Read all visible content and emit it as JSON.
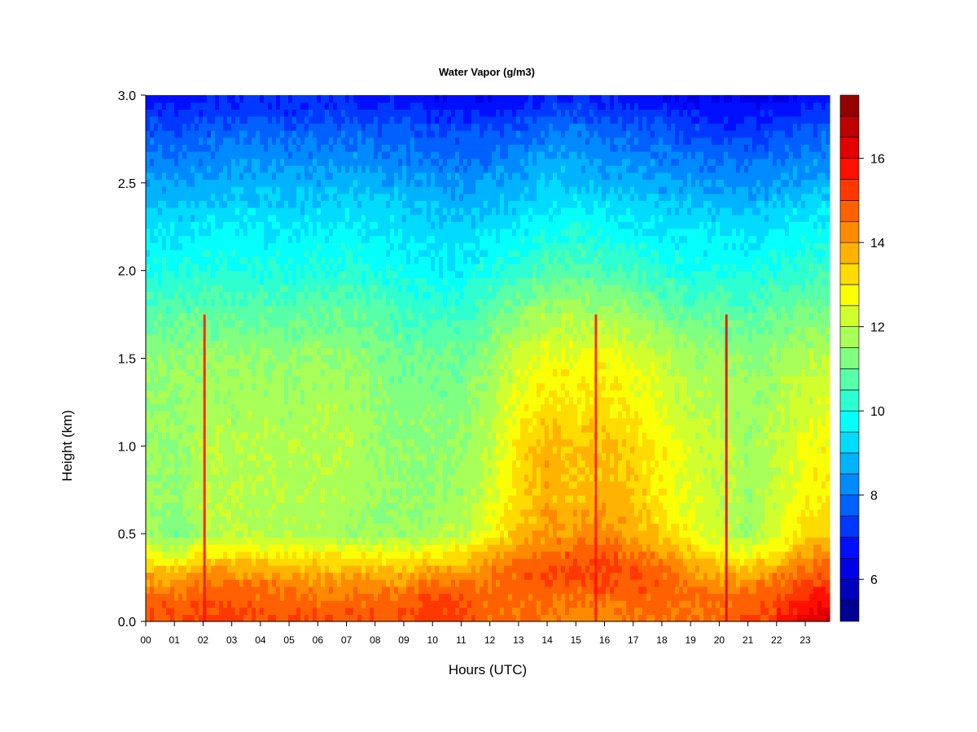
{
  "chart_data": {
    "type": "heatmap",
    "title": "Water Vapor (g/m3)",
    "xlabel": "Hours (UTC)",
    "ylabel": "Height (km)",
    "xlim": [
      0,
      23.85
    ],
    "ylim": [
      0,
      3.0
    ],
    "x_tick_labels": [
      "00",
      "01",
      "02",
      "03",
      "04",
      "05",
      "06",
      "07",
      "08",
      "09",
      "10",
      "11",
      "12",
      "13",
      "14",
      "15",
      "16",
      "17",
      "18",
      "19",
      "20",
      "21",
      "22",
      "23"
    ],
    "y_ticks": [
      0.0,
      0.5,
      1.0,
      1.5,
      2.0,
      2.5,
      3.0
    ],
    "y_tick_labels": [
      "0.0",
      "0.5",
      "1.0",
      "1.5",
      "2.0",
      "2.5",
      "3.0"
    ],
    "colorbar": {
      "range": [
        5,
        17.5
      ],
      "step": 0.5,
      "ticks": [
        6,
        8,
        10,
        12,
        14,
        16
      ],
      "tick_labels": [
        "6",
        "8",
        "10",
        "12",
        "14",
        "16"
      ],
      "colormap": "jet"
    },
    "profile_heights_km": [
      0.0,
      0.1,
      0.2,
      0.3,
      0.4,
      0.5,
      0.7,
      1.0,
      1.2,
      1.5,
      1.8,
      2.0,
      2.3,
      2.5,
      2.8,
      3.0
    ],
    "profiles": [
      {
        "hour": 0,
        "values": [
          15.0,
          14.8,
          14.4,
          13.6,
          12.6,
          11.7,
          11.6,
          11.6,
          11.5,
          11.4,
          10.6,
          10.0,
          9.3,
          8.6,
          7.6,
          6.8
        ]
      },
      {
        "hour": 1,
        "values": [
          15.0,
          14.8,
          14.3,
          13.4,
          12.0,
          11.2,
          11.4,
          11.6,
          11.5,
          11.4,
          10.6,
          10.0,
          9.2,
          8.5,
          7.5,
          6.6
        ]
      },
      {
        "hour": 2,
        "values": [
          15.1,
          14.9,
          14.6,
          13.9,
          12.8,
          11.9,
          11.9,
          11.9,
          11.8,
          11.6,
          10.7,
          10.1,
          9.3,
          8.6,
          7.6,
          6.8
        ]
      },
      {
        "hour": 3,
        "values": [
          15.2,
          15.0,
          14.6,
          13.9,
          12.9,
          12.0,
          11.9,
          11.9,
          11.7,
          11.5,
          10.7,
          10.1,
          9.4,
          8.8,
          7.8,
          6.9
        ]
      },
      {
        "hour": 4,
        "values": [
          15.0,
          14.8,
          14.5,
          13.8,
          12.8,
          11.9,
          11.8,
          11.9,
          11.8,
          11.6,
          10.7,
          10.0,
          9.4,
          8.8,
          7.8,
          6.9
        ]
      },
      {
        "hour": 5,
        "values": [
          15.0,
          14.8,
          14.4,
          13.7,
          12.7,
          11.8,
          11.8,
          11.8,
          11.7,
          11.5,
          10.6,
          10.0,
          9.3,
          8.7,
          7.7,
          6.8
        ]
      },
      {
        "hour": 6,
        "values": [
          15.0,
          14.7,
          14.3,
          13.7,
          12.7,
          11.8,
          11.8,
          11.9,
          11.8,
          11.6,
          10.8,
          10.1,
          9.4,
          8.7,
          7.7,
          6.9
        ]
      },
      {
        "hour": 7,
        "values": [
          15.0,
          14.7,
          14.3,
          13.6,
          12.6,
          11.7,
          11.8,
          11.9,
          11.8,
          11.6,
          10.8,
          10.2,
          9.5,
          8.8,
          7.8,
          6.9
        ]
      },
      {
        "hour": 8,
        "values": [
          15.0,
          14.7,
          14.3,
          13.6,
          12.6,
          11.6,
          11.6,
          11.6,
          11.5,
          11.3,
          10.6,
          10.0,
          9.4,
          8.7,
          7.7,
          6.8
        ]
      },
      {
        "hour": 9,
        "values": [
          15.0,
          14.7,
          14.3,
          13.6,
          12.6,
          11.6,
          11.5,
          11.4,
          11.3,
          11.0,
          10.3,
          9.8,
          9.2,
          8.6,
          7.6,
          6.7
        ]
      },
      {
        "hour": 10,
        "values": [
          15.6,
          15.3,
          14.7,
          13.8,
          12.7,
          11.7,
          11.5,
          11.4,
          11.3,
          11.1,
          10.3,
          9.7,
          9.1,
          8.5,
          7.5,
          6.6
        ]
      },
      {
        "hour": 11,
        "values": [
          15.2,
          15.0,
          14.7,
          14.0,
          13.0,
          11.9,
          11.7,
          11.5,
          11.3,
          11.1,
          10.2,
          9.6,
          9.0,
          8.4,
          7.4,
          6.5
        ]
      },
      {
        "hour": 12,
        "values": [
          14.6,
          14.6,
          14.7,
          14.3,
          13.6,
          12.8,
          12.4,
          12.0,
          11.9,
          11.5,
          10.7,
          10.0,
          9.2,
          8.5,
          7.5,
          6.5
        ]
      },
      {
        "hour": 13,
        "values": [
          14.6,
          14.6,
          14.8,
          14.6,
          14.2,
          13.6,
          13.3,
          13.1,
          12.7,
          12.3,
          11.2,
          10.3,
          9.4,
          8.7,
          7.7,
          6.7
        ]
      },
      {
        "hour": 14,
        "values": [
          14.5,
          14.6,
          14.9,
          15.0,
          14.6,
          14.0,
          13.8,
          13.8,
          13.3,
          12.7,
          11.6,
          10.6,
          9.7,
          9.0,
          8.0,
          7.0
        ]
      },
      {
        "hour": 15,
        "values": [
          14.1,
          14.3,
          14.8,
          15.0,
          14.7,
          14.1,
          13.6,
          13.5,
          13.1,
          12.6,
          11.6,
          10.7,
          9.8,
          9.0,
          8.0,
          7.0
        ]
      },
      {
        "hour": 16,
        "values": [
          14.2,
          14.5,
          15.0,
          15.2,
          14.8,
          14.2,
          13.8,
          13.6,
          13.2,
          12.7,
          11.6,
          10.6,
          9.6,
          8.8,
          7.8,
          6.8
        ]
      },
      {
        "hour": 17,
        "values": [
          14.4,
          14.6,
          15.0,
          15.0,
          14.5,
          13.9,
          13.5,
          13.3,
          12.9,
          12.4,
          11.4,
          10.4,
          9.5,
          8.7,
          7.7,
          6.7
        ]
      },
      {
        "hour": 18,
        "values": [
          14.6,
          14.7,
          14.8,
          14.6,
          14.0,
          13.3,
          12.9,
          12.8,
          12.5,
          12.1,
          11.0,
          10.1,
          9.3,
          8.6,
          7.6,
          6.6
        ]
      },
      {
        "hour": 19,
        "values": [
          14.6,
          14.6,
          14.5,
          14.1,
          13.4,
          12.7,
          12.4,
          12.3,
          12.0,
          11.7,
          10.7,
          9.9,
          9.2,
          8.5,
          7.4,
          6.4
        ]
      },
      {
        "hour": 20,
        "values": [
          14.7,
          14.6,
          14.3,
          13.7,
          12.9,
          12.2,
          12.1,
          12.1,
          11.9,
          11.6,
          10.7,
          10.0,
          9.2,
          8.4,
          7.3,
          6.3
        ]
      },
      {
        "hour": 21,
        "values": [
          15.0,
          14.8,
          14.3,
          13.5,
          12.5,
          11.6,
          11.6,
          11.7,
          11.6,
          11.4,
          10.6,
          9.9,
          9.1,
          8.3,
          7.2,
          6.2
        ]
      },
      {
        "hour": 22,
        "values": [
          15.3,
          15.1,
          14.7,
          14.0,
          13.1,
          12.4,
          12.2,
          12.0,
          11.8,
          11.6,
          10.8,
          10.1,
          9.3,
          8.5,
          7.4,
          6.4
        ]
      },
      {
        "hour": 23,
        "values": [
          16.4,
          15.8,
          15.2,
          14.6,
          13.9,
          13.2,
          12.8,
          12.6,
          12.3,
          11.9,
          11.0,
          10.3,
          9.5,
          8.7,
          7.6,
          6.6
        ]
      },
      {
        "hour": 23.85,
        "values": [
          16.5,
          16.0,
          15.4,
          14.8,
          14.1,
          13.4,
          13.0,
          12.8,
          12.5,
          12.1,
          11.1,
          10.4,
          9.6,
          8.8,
          7.7,
          6.7
        ]
      }
    ],
    "spikes": [
      {
        "hour": 2.05,
        "top_km": 1.75,
        "value": 15.5
      },
      {
        "hour": 15.7,
        "top_km": 1.75,
        "value": 15.8
      },
      {
        "hour": 20.25,
        "top_km": 1.75,
        "value": 16.2
      }
    ]
  }
}
